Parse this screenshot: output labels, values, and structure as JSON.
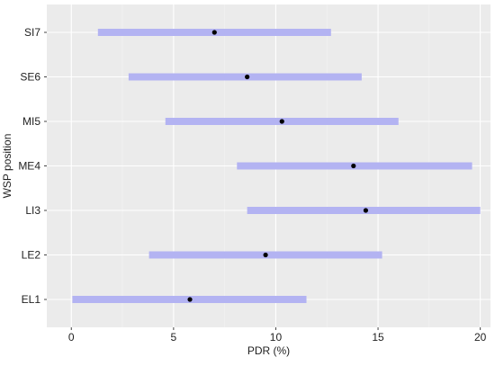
{
  "chart_data": {
    "type": "interval",
    "title": "",
    "xlabel": "PDR (%)",
    "ylabel": "WSP position",
    "xlim": [
      -1.2,
      20.5
    ],
    "xticks": [
      0,
      5,
      10,
      15,
      20
    ],
    "grid": true,
    "categories": [
      "EL1",
      "LE2",
      "LI3",
      "ME4",
      "MI5",
      "SE6",
      "SI7"
    ],
    "low": [
      0.05,
      3.8,
      8.6,
      8.1,
      4.6,
      2.8,
      1.3
    ],
    "high": [
      11.5,
      15.2,
      20.0,
      19.6,
      16.0,
      14.2,
      12.7
    ],
    "mean": [
      5.8,
      9.5,
      14.4,
      13.8,
      10.3,
      8.6,
      7.0
    ],
    "colors": {
      "interval": "#b3b3f2",
      "point": "#000000",
      "panel": "#ebebeb",
      "grid_major": "#ffffff"
    }
  }
}
